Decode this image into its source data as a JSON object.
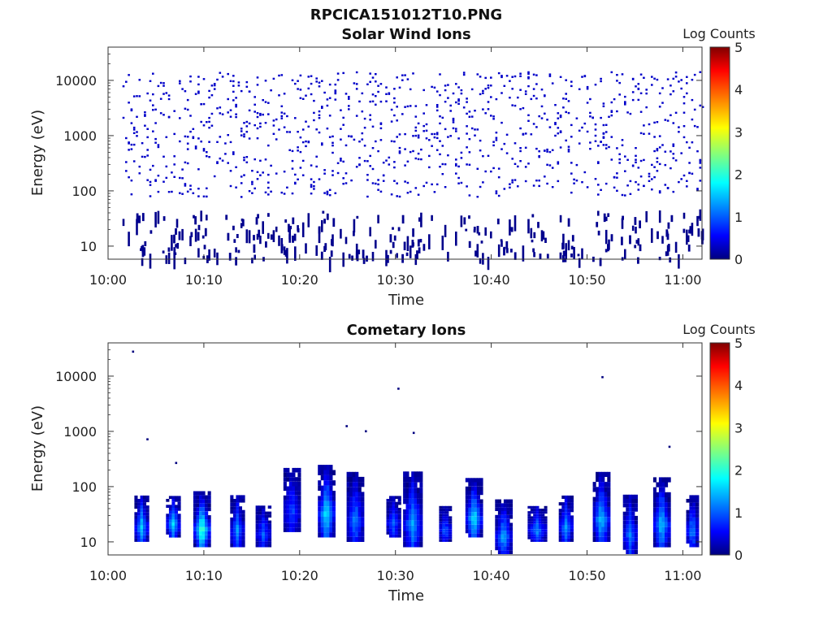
{
  "figure": {
    "filename_title": "RPCICA151012T10.PNG"
  },
  "colormap": {
    "name": "jet",
    "stops": [
      "#00007f",
      "#0000ff",
      "#00ffff",
      "#ffff00",
      "#ff0000",
      "#7f0000"
    ]
  },
  "chart_data": [
    {
      "type": "heatmap",
      "title": "Solar Wind Ions",
      "xlabel": "Time",
      "ylabel": "Energy (eV)",
      "colorbar_label": "Log Counts",
      "colorbar_ticks": [
        "0",
        "1",
        "2",
        "3",
        "4",
        "5"
      ],
      "clim": [
        0,
        5
      ],
      "x_ticks": [
        "10:00",
        "10:10",
        "10:20",
        "10:30",
        "10:40",
        "10:50",
        "11:00"
      ],
      "xlim_minutes": [
        0,
        62
      ],
      "y_scale": "log",
      "y_ticks": [
        "10",
        "100",
        "1000",
        "10000"
      ],
      "ylim": [
        5.8,
        40000
      ],
      "data_start_minute": 1.5,
      "data_end_minute": 62,
      "noise_energy_range": [
        80,
        15000
      ],
      "noise_level": 0.35,
      "low_energy_bursts": [
        {
          "t": 3.5,
          "e_min": 6,
          "e_max": 40,
          "level": 0.4
        },
        {
          "t": 6.5,
          "e_min": 6,
          "e_max": 40,
          "level": 0.4
        },
        {
          "t": 9.5,
          "e_min": 6,
          "e_max": 45,
          "level": 0.4
        },
        {
          "t": 13,
          "e_min": 6,
          "e_max": 45,
          "level": 0.4
        },
        {
          "t": 16,
          "e_min": 6,
          "e_max": 40,
          "level": 0.4
        },
        {
          "t": 19,
          "e_min": 6,
          "e_max": 40,
          "level": 0.4
        },
        {
          "t": 22.5,
          "e_min": 6,
          "e_max": 45,
          "level": 0.4
        },
        {
          "t": 26,
          "e_min": 6,
          "e_max": 40,
          "level": 0.4
        },
        {
          "t": 30,
          "e_min": 6,
          "e_max": 40,
          "level": 0.4
        },
        {
          "t": 32,
          "e_min": 6,
          "e_max": 45,
          "level": 0.4
        },
        {
          "t": 38,
          "e_min": 6,
          "e_max": 45,
          "level": 0.4
        },
        {
          "t": 41.5,
          "e_min": 6,
          "e_max": 40,
          "level": 0.4
        },
        {
          "t": 45,
          "e_min": 6,
          "e_max": 40,
          "level": 0.4
        },
        {
          "t": 48,
          "e_min": 6,
          "e_max": 40,
          "level": 0.4
        },
        {
          "t": 51.5,
          "e_min": 6,
          "e_max": 40,
          "level": 0.4
        },
        {
          "t": 54.5,
          "e_min": 6,
          "e_max": 40,
          "level": 0.4
        },
        {
          "t": 58,
          "e_min": 6,
          "e_max": 40,
          "level": 0.4
        },
        {
          "t": 61,
          "e_min": 6,
          "e_max": 40,
          "level": 0.4
        }
      ]
    },
    {
      "type": "heatmap",
      "title": "Cometary Ions",
      "xlabel": "Time",
      "ylabel": "Energy (eV)",
      "colorbar_label": "Log Counts",
      "colorbar_ticks": [
        "0",
        "1",
        "2",
        "3",
        "4",
        "5"
      ],
      "clim": [
        0,
        5
      ],
      "x_ticks": [
        "10:00",
        "10:10",
        "10:20",
        "10:30",
        "10:40",
        "10:50",
        "11:00"
      ],
      "xlim_minutes": [
        0,
        62
      ],
      "y_scale": "log",
      "y_ticks": [
        "10",
        "100",
        "1000",
        "10000"
      ],
      "ylim": [
        5.8,
        40000
      ],
      "bursts": [
        {
          "t": 3.5,
          "w": 1.5,
          "e_min": 10,
          "e_max": 60,
          "peak": 1.6
        },
        {
          "t": 6.8,
          "w": 1.5,
          "e_min": 12,
          "e_max": 60,
          "peak": 1.6
        },
        {
          "t": 9.8,
          "w": 1.8,
          "e_min": 8,
          "e_max": 70,
          "peak": 2.2
        },
        {
          "t": 13.5,
          "w": 1.5,
          "e_min": 8,
          "e_max": 60,
          "peak": 1.3
        },
        {
          "t": 16.2,
          "w": 1.6,
          "e_min": 8,
          "e_max": 40,
          "peak": 1.0
        },
        {
          "t": 19.2,
          "w": 1.8,
          "e_min": 15,
          "e_max": 180,
          "peak": 0.9
        },
        {
          "t": 22.8,
          "w": 1.8,
          "e_min": 12,
          "e_max": 200,
          "peak": 1.8
        },
        {
          "t": 25.8,
          "w": 1.8,
          "e_min": 10,
          "e_max": 150,
          "peak": 1.2
        },
        {
          "t": 29.8,
          "w": 1.5,
          "e_min": 12,
          "e_max": 60,
          "peak": 1.0
        },
        {
          "t": 31.8,
          "w": 2.0,
          "e_min": 8,
          "e_max": 150,
          "peak": 1.4
        },
        {
          "t": 35.2,
          "w": 1.3,
          "e_min": 10,
          "e_max": 40,
          "peak": 1.0
        },
        {
          "t": 38.2,
          "w": 1.8,
          "e_min": 12,
          "e_max": 120,
          "peak": 1.8
        },
        {
          "t": 41.3,
          "w": 1.8,
          "e_min": 6,
          "e_max": 50,
          "peak": 1.4
        },
        {
          "t": 44.8,
          "w": 2.0,
          "e_min": 10,
          "e_max": 40,
          "peak": 1.2
        },
        {
          "t": 47.8,
          "w": 1.5,
          "e_min": 10,
          "e_max": 60,
          "peak": 1.3
        },
        {
          "t": 51.5,
          "w": 1.8,
          "e_min": 10,
          "e_max": 150,
          "peak": 1.6
        },
        {
          "t": 54.5,
          "w": 1.5,
          "e_min": 6,
          "e_max": 60,
          "peak": 1.2
        },
        {
          "t": 57.8,
          "w": 1.8,
          "e_min": 8,
          "e_max": 120,
          "peak": 1.6
        },
        {
          "t": 61.0,
          "w": 1.3,
          "e_min": 8,
          "e_max": 60,
          "peak": 1.3
        }
      ],
      "isolated_points": [
        {
          "t": 2.5,
          "e": 29000
        },
        {
          "t": 4,
          "e": 750
        },
        {
          "t": 7,
          "e": 280
        },
        {
          "t": 24.8,
          "e": 1300
        },
        {
          "t": 26.8,
          "e": 1050
        },
        {
          "t": 30.2,
          "e": 6200
        },
        {
          "t": 31.8,
          "e": 980
        },
        {
          "t": 51.5,
          "e": 10000
        },
        {
          "t": 58.5,
          "e": 550
        }
      ]
    }
  ]
}
